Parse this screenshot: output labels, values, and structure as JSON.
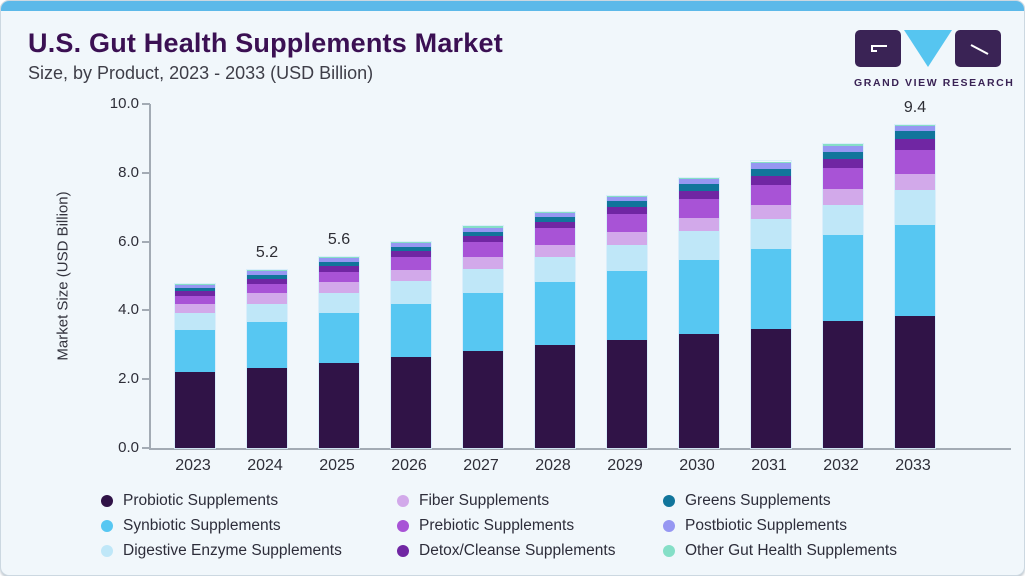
{
  "header": {
    "title": "U.S. Gut Health Supplements Market",
    "subtitle": "Size, by Product, 2023 - 2033 (USD Billion)"
  },
  "logo": {
    "text": "GRAND VIEW RESEARCH"
  },
  "chart_data": {
    "type": "bar",
    "stacked": true,
    "title": "U.S. Gut Health Supplements Market Size, by Product, 2023 - 2033 (USD Billion)",
    "xlabel": "",
    "ylabel": "Market Size (USD Billion)",
    "ylim": [
      0,
      10
    ],
    "yticks": [
      "0.0",
      "2.0",
      "4.0",
      "6.0",
      "8.0",
      "10.0"
    ],
    "grid": false,
    "legend_position": "bottom",
    "categories": [
      "2023",
      "2024",
      "2025",
      "2026",
      "2027",
      "2028",
      "2029",
      "2030",
      "2031",
      "2032",
      "2033"
    ],
    "total_labels": [
      null,
      "5.2",
      "5.6",
      null,
      null,
      null,
      null,
      null,
      null,
      null,
      "9.4"
    ],
    "series": [
      {
        "name": "Probiotic Supplements",
        "color": "#301347",
        "values": [
          2.2,
          2.32,
          2.46,
          2.65,
          2.82,
          3.0,
          3.14,
          3.31,
          3.47,
          3.7,
          3.84
        ]
      },
      {
        "name": "Synbiotic Supplements",
        "color": "#57c7f2",
        "values": [
          1.24,
          1.35,
          1.47,
          1.55,
          1.7,
          1.84,
          2.02,
          2.15,
          2.33,
          2.5,
          2.65
        ]
      },
      {
        "name": "Digestive Enzyme Supplements",
        "color": "#bfe7f8",
        "values": [
          0.5,
          0.53,
          0.58,
          0.65,
          0.68,
          0.71,
          0.74,
          0.84,
          0.85,
          0.86,
          1.0
        ]
      },
      {
        "name": "Fiber Supplements",
        "color": "#d2a9ea",
        "values": [
          0.26,
          0.3,
          0.31,
          0.33,
          0.34,
          0.36,
          0.37,
          0.39,
          0.41,
          0.48,
          0.49
        ]
      },
      {
        "name": "Prebiotic Supplements",
        "color": "#a853d6",
        "values": [
          0.23,
          0.27,
          0.3,
          0.38,
          0.45,
          0.48,
          0.52,
          0.55,
          0.58,
          0.6,
          0.68
        ]
      },
      {
        "name": "Detox/Cleanse Supplements",
        "color": "#7026a3",
        "values": [
          0.13,
          0.15,
          0.17,
          0.16,
          0.17,
          0.18,
          0.21,
          0.24,
          0.27,
          0.27,
          0.32
        ]
      },
      {
        "name": "Greens Supplements",
        "color": "#11759b",
        "values": [
          0.1,
          0.12,
          0.13,
          0.12,
          0.13,
          0.14,
          0.17,
          0.19,
          0.21,
          0.21,
          0.23
        ]
      },
      {
        "name": "Postbiotic Supplements",
        "color": "#9697f2",
        "values": [
          0.08,
          0.1,
          0.1,
          0.11,
          0.12,
          0.11,
          0.13,
          0.14,
          0.16,
          0.16,
          0.14
        ]
      },
      {
        "name": "Other Gut Health Supplements",
        "color": "#85dfc7",
        "values": [
          0.03,
          0.03,
          0.04,
          0.04,
          0.04,
          0.04,
          0.04,
          0.05,
          0.05,
          0.05,
          0.05
        ]
      }
    ],
    "legend_columns": [
      [
        0,
        1,
        2
      ],
      [
        3,
        4,
        5
      ],
      [
        6,
        7,
        8
      ]
    ]
  }
}
